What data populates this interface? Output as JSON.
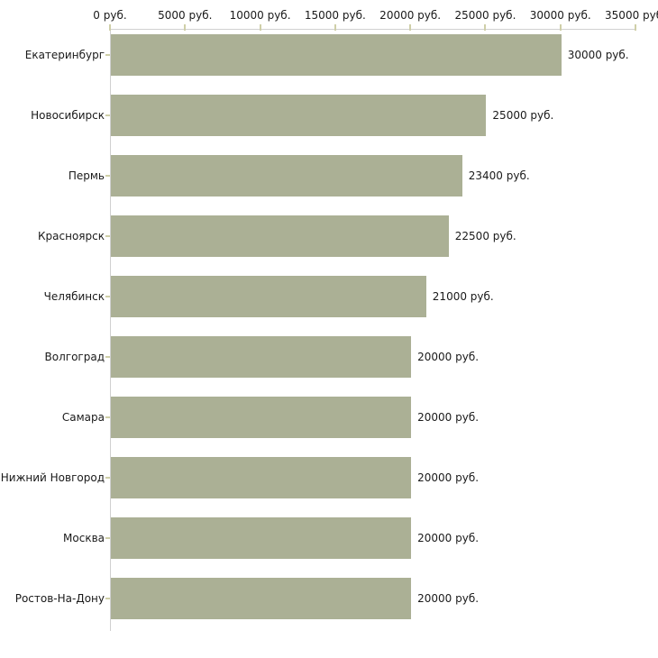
{
  "chart_data": {
    "type": "bar",
    "orientation": "horizontal",
    "title": "",
    "xlabel": "",
    "ylabel": "",
    "categories": [
      "Екатеринбург",
      "Новосибирск",
      "Пермь",
      "Красноярск",
      "Челябинск",
      "Волгоград",
      "Самара",
      "Нижний Новгород",
      "Москва",
      "Ростов-На-Дону"
    ],
    "values": [
      30000,
      25000,
      23400,
      22500,
      21000,
      20000,
      20000,
      20000,
      20000,
      20000
    ],
    "value_labels": [
      "30000 руб.",
      "25000 руб.",
      "23400 руб.",
      "22500 руб.",
      "21000 руб.",
      "20000 руб.",
      "20000 руб.",
      "20000 руб.",
      "20000 руб.",
      "20000 руб."
    ],
    "x_tick_values": [
      0,
      5000,
      10000,
      15000,
      20000,
      25000,
      30000,
      35000
    ],
    "x_tick_labels": [
      "0 руб.",
      "5000 руб.",
      "10000 руб.",
      "15000 руб.",
      "20000 руб.",
      "25000 руб.",
      "30000 руб.",
      "35000 руб."
    ],
    "xlim": [
      0,
      35000
    ],
    "grid": false,
    "legend": false,
    "colors": {
      "bar": "#abb095",
      "axis_line": "#d0d0d0",
      "tick_mark": "#cfcfa8",
      "text": "#1a1a1a",
      "background": "#ffffff"
    }
  }
}
